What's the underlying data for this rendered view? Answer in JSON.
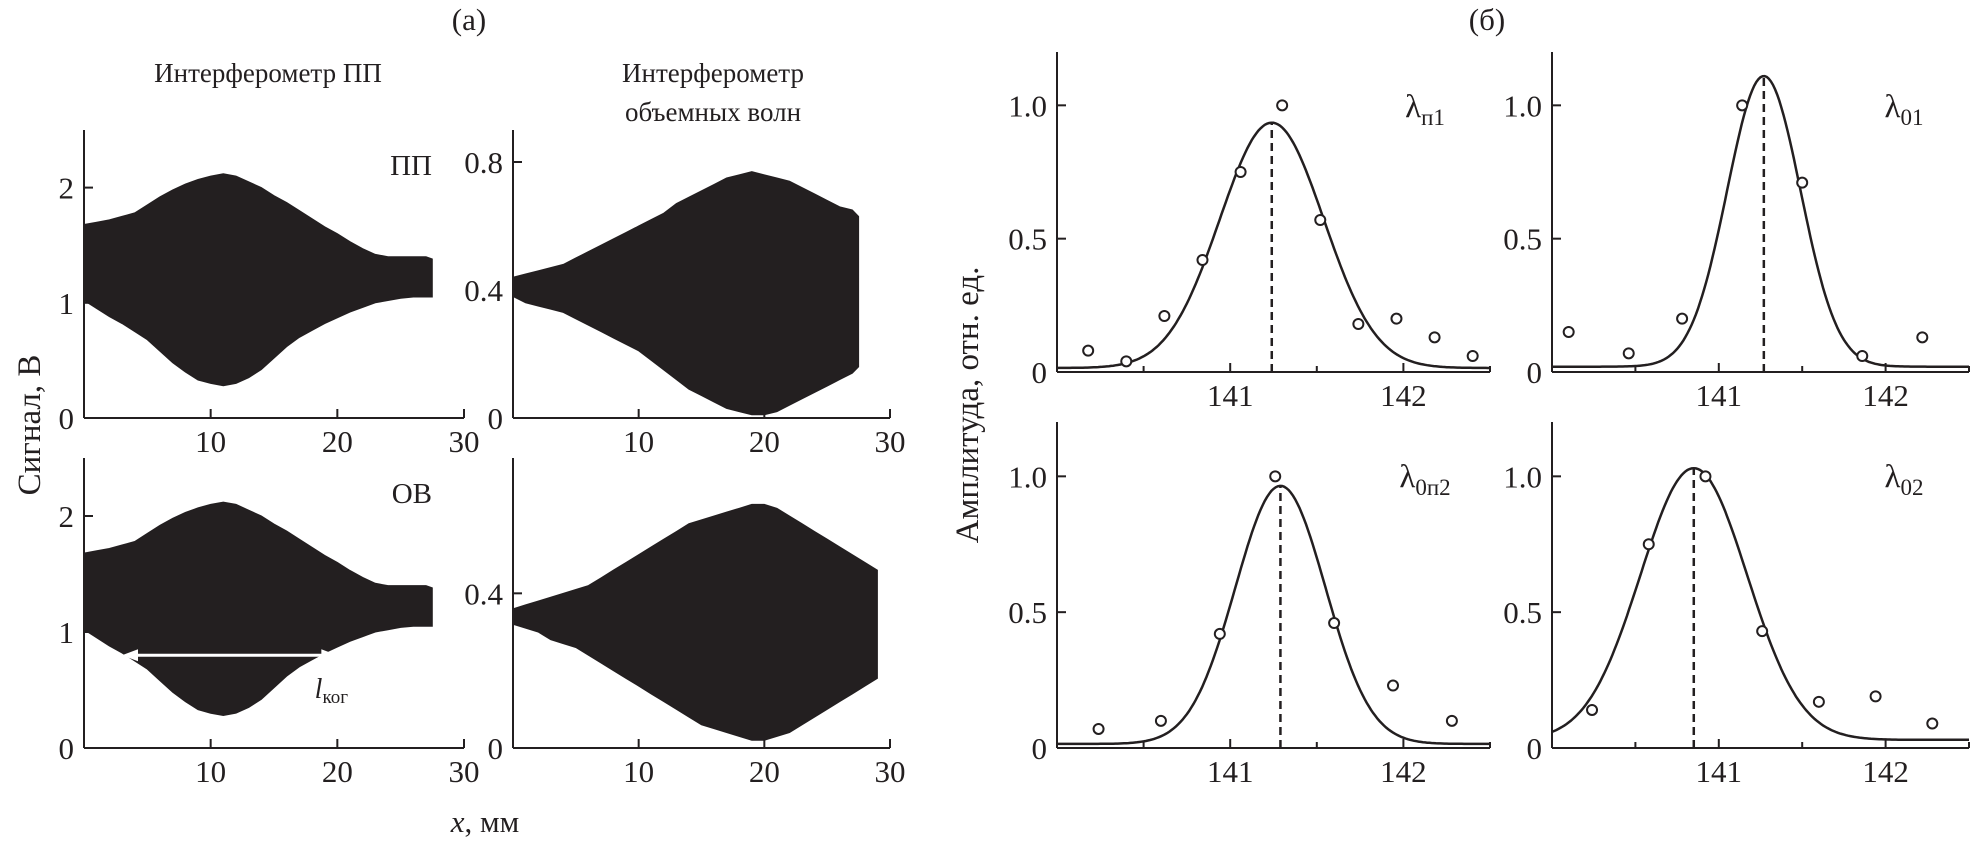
{
  "figure": {
    "panel_a_label": "(а)",
    "panel_b_label": "(б)",
    "ylabel_a": "Сигнал, В",
    "xlabel_a_var": "x",
    "xlabel_a_unit": ", мм",
    "ylabel_b": "Амплитуда, отн. ед.",
    "col_title_left": "Интерферометр ПП",
    "col_title_right_line1": "Интерферометр",
    "col_title_right_line2": "объемных волн",
    "coherence_label_main": "l",
    "coherence_label_sub": "ког",
    "ink_color": "#231f20"
  },
  "chart_data": [
    {
      "type": "area",
      "id": "a_top_left",
      "annotation": "ПП",
      "xlim": [
        0,
        30
      ],
      "ylim": [
        0,
        2.5
      ],
      "xticks": [
        10,
        20,
        30
      ],
      "yticks": [
        0,
        1,
        2
      ],
      "x": [
        0,
        1,
        2,
        3,
        4,
        5,
        6,
        7,
        8,
        9,
        10,
        11,
        12,
        13,
        14,
        15,
        16,
        17,
        18,
        19,
        20,
        21,
        22,
        23,
        24,
        25,
        26,
        27,
        27.5
      ],
      "upper": [
        1.68,
        1.7,
        1.72,
        1.75,
        1.78,
        1.85,
        1.92,
        1.98,
        2.03,
        2.07,
        2.1,
        2.12,
        2.1,
        2.05,
        2.0,
        1.93,
        1.87,
        1.8,
        1.73,
        1.66,
        1.6,
        1.53,
        1.47,
        1.42,
        1.4,
        1.4,
        1.4,
        1.4,
        1.38
      ],
      "lower": [
        1.02,
        0.95,
        0.88,
        0.82,
        0.75,
        0.68,
        0.58,
        0.48,
        0.4,
        0.33,
        0.3,
        0.28,
        0.3,
        0.35,
        0.42,
        0.52,
        0.62,
        0.7,
        0.76,
        0.82,
        0.87,
        0.92,
        0.96,
        1.0,
        1.02,
        1.04,
        1.05,
        1.05,
        1.05
      ]
    },
    {
      "type": "area",
      "id": "a_top_right",
      "xlim": [
        0,
        30
      ],
      "ylim": [
        0,
        0.9
      ],
      "xticks": [
        10,
        20,
        30
      ],
      "yticks": [
        0,
        0.4,
        0.8
      ],
      "ytick_labels": [
        "0",
        "0.4",
        "0.8"
      ],
      "x": [
        0,
        1,
        2,
        3,
        4,
        5,
        6,
        7,
        8,
        9,
        10,
        11,
        12,
        13,
        14,
        15,
        16,
        17,
        18,
        19,
        20,
        21,
        22,
        23,
        24,
        25,
        26,
        27,
        27.5
      ],
      "upper": [
        0.44,
        0.45,
        0.46,
        0.47,
        0.48,
        0.5,
        0.52,
        0.54,
        0.56,
        0.58,
        0.6,
        0.62,
        0.64,
        0.67,
        0.69,
        0.71,
        0.73,
        0.75,
        0.76,
        0.77,
        0.76,
        0.75,
        0.74,
        0.72,
        0.7,
        0.68,
        0.66,
        0.65,
        0.63
      ],
      "lower": [
        0.38,
        0.36,
        0.35,
        0.34,
        0.33,
        0.31,
        0.29,
        0.27,
        0.25,
        0.23,
        0.21,
        0.18,
        0.15,
        0.12,
        0.09,
        0.07,
        0.05,
        0.03,
        0.02,
        0.01,
        0.01,
        0.02,
        0.04,
        0.06,
        0.08,
        0.1,
        0.12,
        0.14,
        0.16
      ]
    },
    {
      "type": "area",
      "id": "a_bottom_left",
      "annotation": "ОВ",
      "xlim": [
        0,
        30
      ],
      "ylim": [
        0,
        2.5
      ],
      "xticks": [
        10,
        20,
        30
      ],
      "yticks": [
        0,
        1,
        2
      ],
      "x": [
        0,
        1,
        2,
        3,
        4,
        5,
        6,
        7,
        8,
        9,
        10,
        11,
        12,
        13,
        14,
        15,
        16,
        17,
        18,
        19,
        20,
        21,
        22,
        23,
        24,
        25,
        26,
        27,
        27.5
      ],
      "upper": [
        1.68,
        1.7,
        1.72,
        1.75,
        1.78,
        1.85,
        1.92,
        1.98,
        2.03,
        2.07,
        2.1,
        2.12,
        2.1,
        2.05,
        2.0,
        1.93,
        1.87,
        1.8,
        1.73,
        1.66,
        1.6,
        1.53,
        1.47,
        1.42,
        1.4,
        1.4,
        1.4,
        1.4,
        1.38
      ],
      "lower": [
        1.02,
        0.95,
        0.88,
        0.82,
        0.75,
        0.68,
        0.58,
        0.48,
        0.4,
        0.33,
        0.3,
        0.28,
        0.3,
        0.35,
        0.42,
        0.52,
        0.62,
        0.7,
        0.76,
        0.82,
        0.87,
        0.92,
        0.96,
        1.0,
        1.02,
        1.04,
        1.05,
        1.05,
        1.05
      ],
      "arrow": {
        "x1": 3,
        "x2": 20,
        "y": 0.8
      }
    },
    {
      "type": "area",
      "id": "a_bottom_right",
      "xlim": [
        0,
        30
      ],
      "ylim": [
        0,
        0.75
      ],
      "xticks": [
        10,
        20,
        30
      ],
      "yticks": [
        0,
        0.4
      ],
      "ytick_labels": [
        "0",
        "0.4"
      ],
      "x": [
        0,
        1,
        2,
        3,
        4,
        5,
        6,
        7,
        8,
        9,
        10,
        11,
        12,
        13,
        14,
        15,
        16,
        17,
        18,
        19,
        20,
        21,
        22,
        23,
        24,
        25,
        26,
        27,
        28,
        29
      ],
      "upper": [
        0.36,
        0.37,
        0.38,
        0.39,
        0.4,
        0.41,
        0.42,
        0.44,
        0.46,
        0.48,
        0.5,
        0.52,
        0.54,
        0.56,
        0.58,
        0.59,
        0.6,
        0.61,
        0.62,
        0.63,
        0.63,
        0.62,
        0.6,
        0.58,
        0.56,
        0.54,
        0.52,
        0.5,
        0.48,
        0.46
      ],
      "lower": [
        0.32,
        0.31,
        0.3,
        0.28,
        0.27,
        0.26,
        0.24,
        0.22,
        0.2,
        0.18,
        0.16,
        0.14,
        0.12,
        0.1,
        0.08,
        0.06,
        0.05,
        0.04,
        0.03,
        0.02,
        0.02,
        0.03,
        0.04,
        0.06,
        0.08,
        0.1,
        0.12,
        0.14,
        0.16,
        0.18
      ]
    },
    {
      "type": "scatter",
      "id": "b_top_left",
      "label_main": "λ",
      "label_sub": "п1",
      "xlim": [
        140.0,
        142.5
      ],
      "ylim": [
        0,
        1.2
      ],
      "xticks": [
        141,
        142
      ],
      "yticks": [
        0,
        0.5,
        1.0
      ],
      "ytick_labels": [
        "0",
        "0.5",
        "1.0"
      ],
      "points_x": [
        140.18,
        140.4,
        140.62,
        140.84,
        141.06,
        141.3,
        141.52,
        141.74,
        141.96,
        142.18,
        142.4
      ],
      "points_y": [
        0.08,
        0.04,
        0.21,
        0.42,
        0.75,
        1.0,
        0.57,
        0.18,
        0.2,
        0.13,
        0.06
      ],
      "fit": {
        "center": 141.24,
        "amplitude": 0.92,
        "sigma": 0.3,
        "baseline": 0.015
      },
      "vline": 141.24
    },
    {
      "type": "scatter",
      "id": "b_top_right",
      "label_main": "λ",
      "label_sub": "01",
      "xlim": [
        140.0,
        142.5
      ],
      "ylim": [
        0,
        1.2
      ],
      "xticks": [
        141,
        142
      ],
      "yticks": [
        0,
        0.5,
        1.0
      ],
      "ytick_labels": [
        "0",
        "0.5",
        "1.0"
      ],
      "points_x": [
        140.1,
        140.46,
        140.78,
        141.14,
        141.5,
        141.86,
        142.22
      ],
      "points_y": [
        0.15,
        0.07,
        0.2,
        1.0,
        0.71,
        0.06,
        0.13
      ],
      "fit": {
        "center": 141.27,
        "amplitude": 1.09,
        "sigma": 0.22,
        "baseline": 0.02
      },
      "vline": 141.27
    },
    {
      "type": "scatter",
      "id": "b_bottom_left",
      "label_main": "λ",
      "label_sub": "0п2",
      "xlim": [
        140.0,
        142.5
      ],
      "ylim": [
        0,
        1.2
      ],
      "xticks": [
        141,
        142
      ],
      "yticks": [
        0,
        0.5,
        1.0
      ],
      "ytick_labels": [
        "0",
        "0.5",
        "1.0"
      ],
      "points_x": [
        140.24,
        140.6,
        140.94,
        141.26,
        141.6,
        141.94,
        142.28
      ],
      "points_y": [
        0.07,
        0.1,
        0.42,
        1.0,
        0.46,
        0.23,
        0.1
      ],
      "fit": {
        "center": 141.29,
        "amplitude": 0.95,
        "sigma": 0.26,
        "baseline": 0.015
      },
      "vline": 141.29
    },
    {
      "type": "scatter",
      "id": "b_bottom_right",
      "label_main": "λ",
      "label_sub": "02",
      "xlim": [
        140.0,
        142.5
      ],
      "ylim": [
        0,
        1.2
      ],
      "xticks": [
        141,
        142
      ],
      "yticks": [
        0,
        0.5,
        1.0
      ],
      "ytick_labels": [
        "0",
        "0.5",
        "1.0"
      ],
      "points_x": [
        140.24,
        140.58,
        140.92,
        141.26,
        141.6,
        141.94,
        142.28
      ],
      "points_y": [
        0.14,
        0.75,
        1.0,
        0.43,
        0.17,
        0.19,
        0.09
      ],
      "fit": {
        "center": 140.85,
        "amplitude": 1.0,
        "sigma": 0.32,
        "baseline": 0.03
      },
      "vline": 140.85
    }
  ]
}
